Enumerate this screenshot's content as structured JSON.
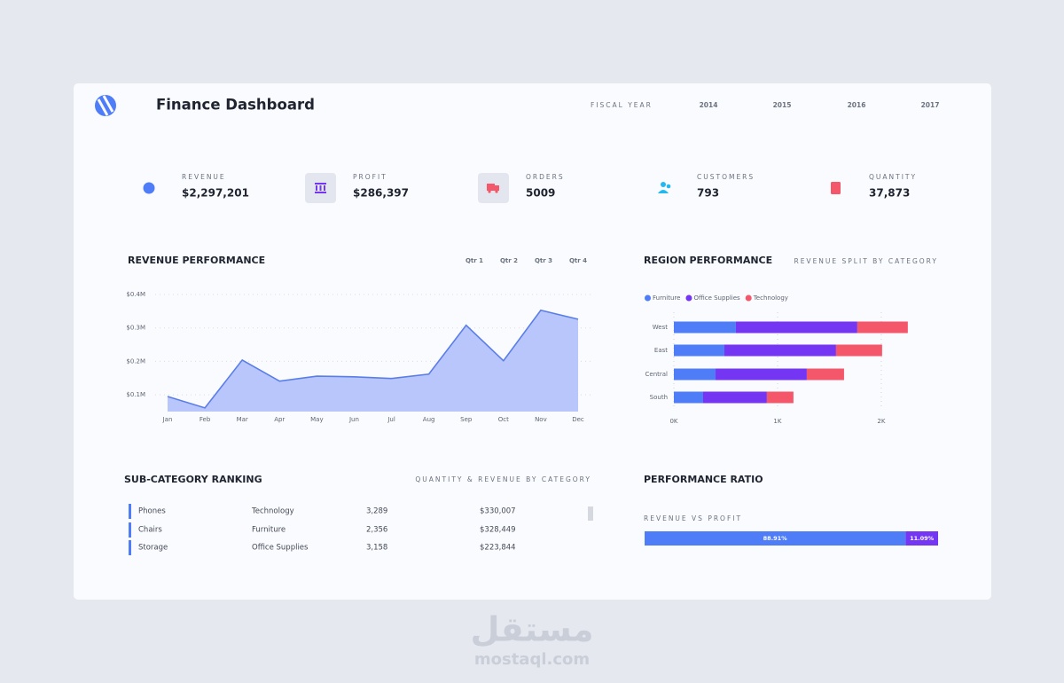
{
  "header": {
    "title": "Finance Dashboard",
    "fiscal_year_label": "FISCAL YEAR",
    "years": [
      "2014",
      "2015",
      "2016",
      "2017"
    ]
  },
  "kpis": [
    {
      "label": "REVENUE",
      "value": "$2,297,201"
    },
    {
      "label": "PROFIT",
      "value": "$286,397"
    },
    {
      "label": "ORDERS",
      "value": "5009"
    },
    {
      "label": "CUSTOMERS",
      "value": "793"
    },
    {
      "label": "QUANTITY",
      "value": "37,873"
    }
  ],
  "chart_data": [
    {
      "type": "area",
      "title": "REVENUE PERFORMANCE",
      "quarters": [
        "Qtr 1",
        "Qtr 2",
        "Qtr 3",
        "Qtr 4"
      ],
      "categories": [
        "Jan",
        "Feb",
        "Mar",
        "Apr",
        "May",
        "Jun",
        "Jul",
        "Aug",
        "Sep",
        "Oct",
        "Nov",
        "Dec"
      ],
      "values": [
        95000,
        61000,
        204000,
        141000,
        156000,
        154000,
        149000,
        162000,
        308000,
        202000,
        353000,
        326000
      ],
      "color": "#5a7ee8",
      "fill_color": "#b8c6fb",
      "ylim": [
        50000,
        400000
      ],
      "yticks": [
        {
          "value": 100000,
          "label": "$0.1M"
        },
        {
          "value": 200000,
          "label": "$0.2M"
        },
        {
          "value": 300000,
          "label": "$0.3M"
        },
        {
          "value": 400000,
          "label": "$0.4M"
        }
      ],
      "grid": true
    },
    {
      "type": "bar",
      "orientation": "horizontal",
      "stacked": true,
      "title": "REGION PERFORMANCE",
      "subtitle": "REVENUE SPLIT BY CATEGORY",
      "categories": [
        "West",
        "East",
        "Central",
        "South"
      ],
      "series": [
        {
          "name": "Furniture",
          "color": "#4f7cf7",
          "values": [
            598,
            487,
            402,
            282
          ]
        },
        {
          "name": "Office Supplies",
          "color": "#7436f3",
          "values": [
            1171,
            1077,
            880,
            615
          ]
        },
        {
          "name": "Technology",
          "color": "#f4566a",
          "values": [
            487,
            444,
            359,
            256
          ]
        }
      ],
      "xlim": [
        0,
        2300
      ],
      "xticks": [
        {
          "value": 0,
          "label": "0K"
        },
        {
          "value": 1000,
          "label": "1K"
        },
        {
          "value": 2000,
          "label": "2K"
        }
      ],
      "grid": true,
      "legend": "top-left"
    },
    {
      "type": "bar",
      "orientation": "horizontal",
      "stacked": true,
      "title": "PERFORMANCE RATIO",
      "subtitle": "REVENUE VS PROFIT",
      "values": [
        88.91,
        11.09
      ],
      "value_labels": [
        "88.91%",
        "11.09%"
      ],
      "colors": [
        "#4f7cf7",
        "#7436f3"
      ],
      "xlim": [
        0,
        100
      ]
    }
  ],
  "table": {
    "title": "SUB-CATEGORY RANKING",
    "subtitle": "QUANTITY & REVENUE BY CATEGORY",
    "rows": [
      [
        "Phones",
        "Technology",
        "3,289",
        "$330,007"
      ],
      [
        "Chairs",
        "Furniture",
        "2,356",
        "$328,449"
      ],
      [
        "Storage",
        "Office Supplies",
        "3,158",
        "$223,844"
      ]
    ]
  },
  "watermark": {
    "arabic": "مستقل",
    "site": "mostaql.com"
  }
}
